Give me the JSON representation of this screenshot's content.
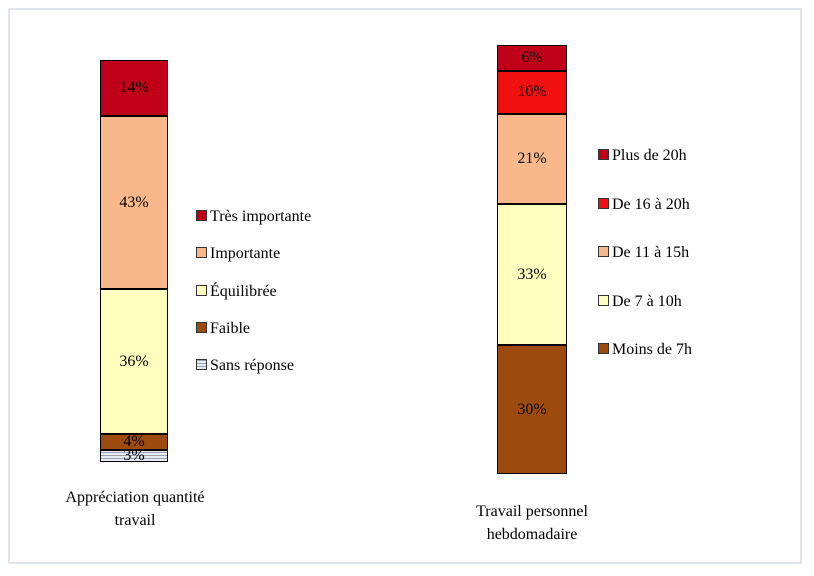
{
  "chart_data": [
    {
      "type": "bar",
      "stacked": true,
      "categories": [
        "Appréciation quantité travail"
      ],
      "series": [
        {
          "name": "Sans réponse",
          "color": "#c4cad6",
          "values": [
            3
          ],
          "value_labels": [
            "3%"
          ]
        },
        {
          "name": "Faible",
          "color": "#9c4a0d",
          "values": [
            4
          ],
          "value_labels": [
            "4%"
          ]
        },
        {
          "name": "Équilibrée",
          "color": "#ffffc0",
          "values": [
            36
          ],
          "value_labels": [
            "36%"
          ]
        },
        {
          "name": "Importante",
          "color": "#f9b88c",
          "values": [
            43
          ],
          "value_labels": [
            "43%"
          ]
        },
        {
          "name": "Très importante",
          "color": "#c00018",
          "values": [
            14
          ],
          "value_labels": [
            "14%"
          ]
        }
      ]
    },
    {
      "type": "bar",
      "stacked": true,
      "categories": [
        "Travail personnel hebdomadaire"
      ],
      "series": [
        {
          "name": "Moins de 7h",
          "color": "#9c4a0d",
          "values": [
            30
          ],
          "value_labels": [
            "30%"
          ]
        },
        {
          "name": "De 7 à 10h",
          "color": "#ffffc0",
          "values": [
            33
          ],
          "value_labels": [
            "33%"
          ]
        },
        {
          "name": "De 11 à 15h",
          "color": "#f9b88c",
          "values": [
            21
          ],
          "value_labels": [
            "21%"
          ]
        },
        {
          "name": "De 16 à 20h",
          "color": "#f01010",
          "values": [
            10
          ],
          "value_labels": [
            "10%"
          ]
        },
        {
          "name": "Plus de 20h",
          "color": "#c00018",
          "values": [
            6
          ],
          "value_labels": [
            "6%"
          ]
        }
      ]
    }
  ]
}
